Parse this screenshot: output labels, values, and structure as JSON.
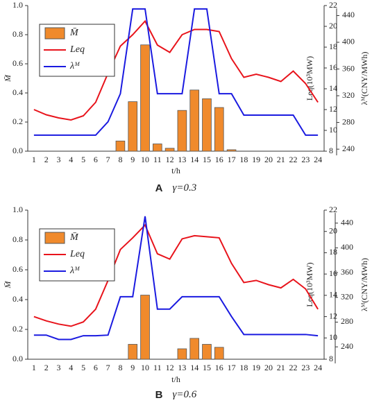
{
  "chart_data": [
    {
      "type": "bar_line",
      "panel_label": "A",
      "caption": "γ=0.3",
      "xlabel": "t/h",
      "ylabel": "M̄",
      "y2label": "Leq(10³MW)",
      "y3label": "λᴹ(CNY/MWh)",
      "categories": [
        "1",
        "2",
        "3",
        "4",
        "5",
        "6",
        "7",
        "8",
        "9",
        "10",
        "11",
        "12",
        "13",
        "14",
        "15",
        "16",
        "17",
        "18",
        "19",
        "20",
        "21",
        "22",
        "23",
        "24"
      ],
      "ylim": [
        0,
        1
      ],
      "yticks": [
        {
          "value": 0,
          "label": "0.0"
        },
        0.2,
        0.4,
        0.6,
        0.8,
        {
          "value": 1,
          "label": "1.0"
        }
      ],
      "y2lim": [
        8,
        22
      ],
      "y2ticks": [
        8,
        10,
        12,
        14,
        16,
        18,
        20,
        22
      ],
      "y3lim": [
        237,
        455
      ],
      "y3ticks": [
        240,
        280,
        320,
        360,
        400,
        440
      ],
      "legend": "upper left",
      "series": [
        {
          "name": "M̄",
          "type": "bar",
          "color": "#f08a2c",
          "values": [
            0,
            0,
            0,
            0,
            0,
            0,
            0,
            0.07,
            0.34,
            0.73,
            0.05,
            0.02,
            0.28,
            0.42,
            0.36,
            0.3,
            0.01,
            0,
            0,
            0,
            0,
            0,
            0,
            0
          ]
        },
        {
          "name": "Leq",
          "type": "line",
          "axis": "y2",
          "color": "#e8131b",
          "values": [
            12.0,
            11.5,
            11.2,
            11.0,
            11.4,
            12.7,
            15.5,
            18.1,
            19.2,
            20.5,
            18.2,
            17.5,
            19.2,
            19.7,
            19.7,
            19.5,
            16.9,
            15.1,
            15.4,
            15.1,
            14.7,
            15.7,
            14.5,
            12.7
          ]
        },
        {
          "name": "λᴹ",
          "type": "line",
          "axis": "y3",
          "color": "#1a1ae0",
          "values": [
            261,
            261,
            261,
            261,
            261,
            261,
            281,
            323,
            450,
            450,
            323,
            323,
            323,
            450,
            450,
            323,
            323,
            291,
            291,
            291,
            291,
            291,
            261,
            261
          ]
        }
      ]
    },
    {
      "type": "bar_line",
      "panel_label": "B",
      "caption": "γ=0.6",
      "xlabel": "t/h",
      "ylabel": "M̄",
      "y2label": "Leq(10³MW)",
      "y3label": "λᴹ(CNY/MWh)",
      "categories": [
        "1",
        "2",
        "3",
        "4",
        "5",
        "6",
        "7",
        "8",
        "9",
        "10",
        "11",
        "12",
        "13",
        "14",
        "15",
        "16",
        "17",
        "18",
        "19",
        "20",
        "21",
        "22",
        "23",
        "24"
      ],
      "ylim": [
        0,
        1
      ],
      "yticks": [
        {
          "value": 0,
          "label": "0.0"
        },
        0.2,
        0.4,
        0.6,
        0.8,
        {
          "value": 1,
          "label": "1.0"
        }
      ],
      "y2lim": [
        8,
        22
      ],
      "y2ticks": [
        8,
        10,
        12,
        14,
        16,
        18,
        20,
        22
      ],
      "y3lim": [
        220,
        461
      ],
      "y3ticks": [
        240,
        280,
        320,
        360,
        400,
        440
      ],
      "legend": "upper left",
      "series": [
        {
          "name": "M̄",
          "type": "bar",
          "color": "#f08a2c",
          "values": [
            0,
            0,
            0,
            0,
            0,
            0,
            0,
            0,
            0.1,
            0.43,
            0,
            0,
            0.07,
            0.14,
            0.1,
            0.08,
            0,
            0,
            0,
            0,
            0,
            0,
            0,
            0
          ]
        },
        {
          "name": "Leq",
          "type": "line",
          "axis": "y2",
          "color": "#e8131b",
          "values": [
            12.0,
            11.6,
            11.3,
            11.1,
            11.5,
            12.7,
            15.4,
            18.3,
            19.4,
            20.6,
            17.9,
            17.4,
            19.3,
            19.6,
            19.5,
            19.4,
            17.0,
            15.2,
            15.4,
            15.0,
            14.7,
            15.5,
            14.6,
            12.7
          ]
        },
        {
          "name": "λᴹ",
          "type": "line",
          "axis": "y3",
          "color": "#1a1ae0",
          "values": [
            259,
            259,
            252,
            252,
            258,
            258,
            259,
            321,
            321,
            451,
            301,
            301,
            321,
            321,
            321,
            321,
            289,
            260,
            260,
            260,
            260,
            260,
            260,
            258
          ]
        }
      ]
    }
  ]
}
